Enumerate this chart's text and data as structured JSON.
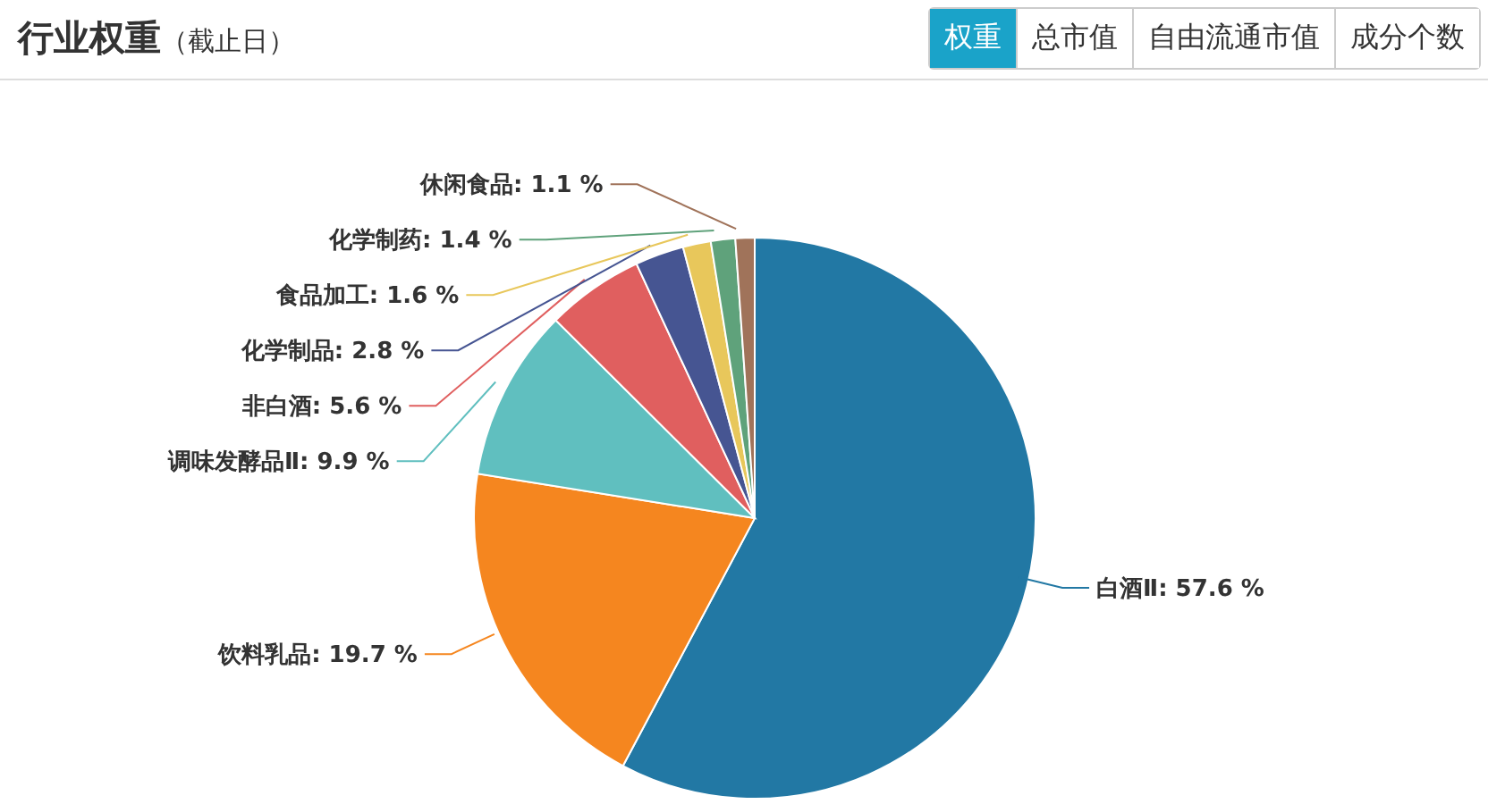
{
  "chart_data": {
    "type": "pie",
    "title": "行业权重",
    "subtitle": "（截止日）",
    "annotations": [
      "权重",
      "总市值",
      "自由流通市值",
      "成分个数"
    ],
    "categories": [
      "白酒Ⅱ",
      "饮料乳品",
      "调味发酵品Ⅱ",
      "非白酒",
      "化学制品",
      "食品加工",
      "化学制药",
      "休闲食品"
    ],
    "values": [
      57.6,
      19.7,
      9.9,
      5.6,
      2.8,
      1.6,
      1.4,
      1.1
    ],
    "value_labels": [
      "57.6 %",
      "19.7 %",
      "9.9 %",
      "5.6 %",
      "2.8 %",
      "1.6 %",
      "1.4 %",
      "1.1 %"
    ],
    "colors": [
      "#2278a4",
      "#f5861f",
      "#60bfbf",
      "#e05f5f",
      "#465592",
      "#e8c75b",
      "#5fa27b",
      "#a0735a"
    ]
  }
}
